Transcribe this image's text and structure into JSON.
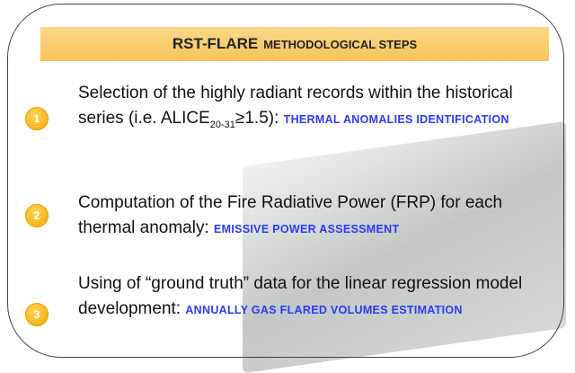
{
  "header": {
    "title_main": "RST-FLARE",
    "title_rest": "METHODOLOGICAL STEPS"
  },
  "steps": [
    {
      "number": "1",
      "text": "Selection of the highly radiant records within the historical series (i.e. ALICE",
      "subscript": "20-31",
      "text_after": "≥1.5):",
      "highlight": "THERMAL ANOMALIES IDENTIFICATION"
    },
    {
      "number": "2",
      "text": "Computation of the Fire Radiative Power (FRP) for each thermal anomaly:",
      "highlight": "EMISSIVE POWER ASSESSMENT"
    },
    {
      "number": "3",
      "text": "Using of “ground truth” data for the linear regression model development:",
      "highlight": "ANNUALLY GAS FLARED VOLUMES ESTIMATION"
    }
  ]
}
